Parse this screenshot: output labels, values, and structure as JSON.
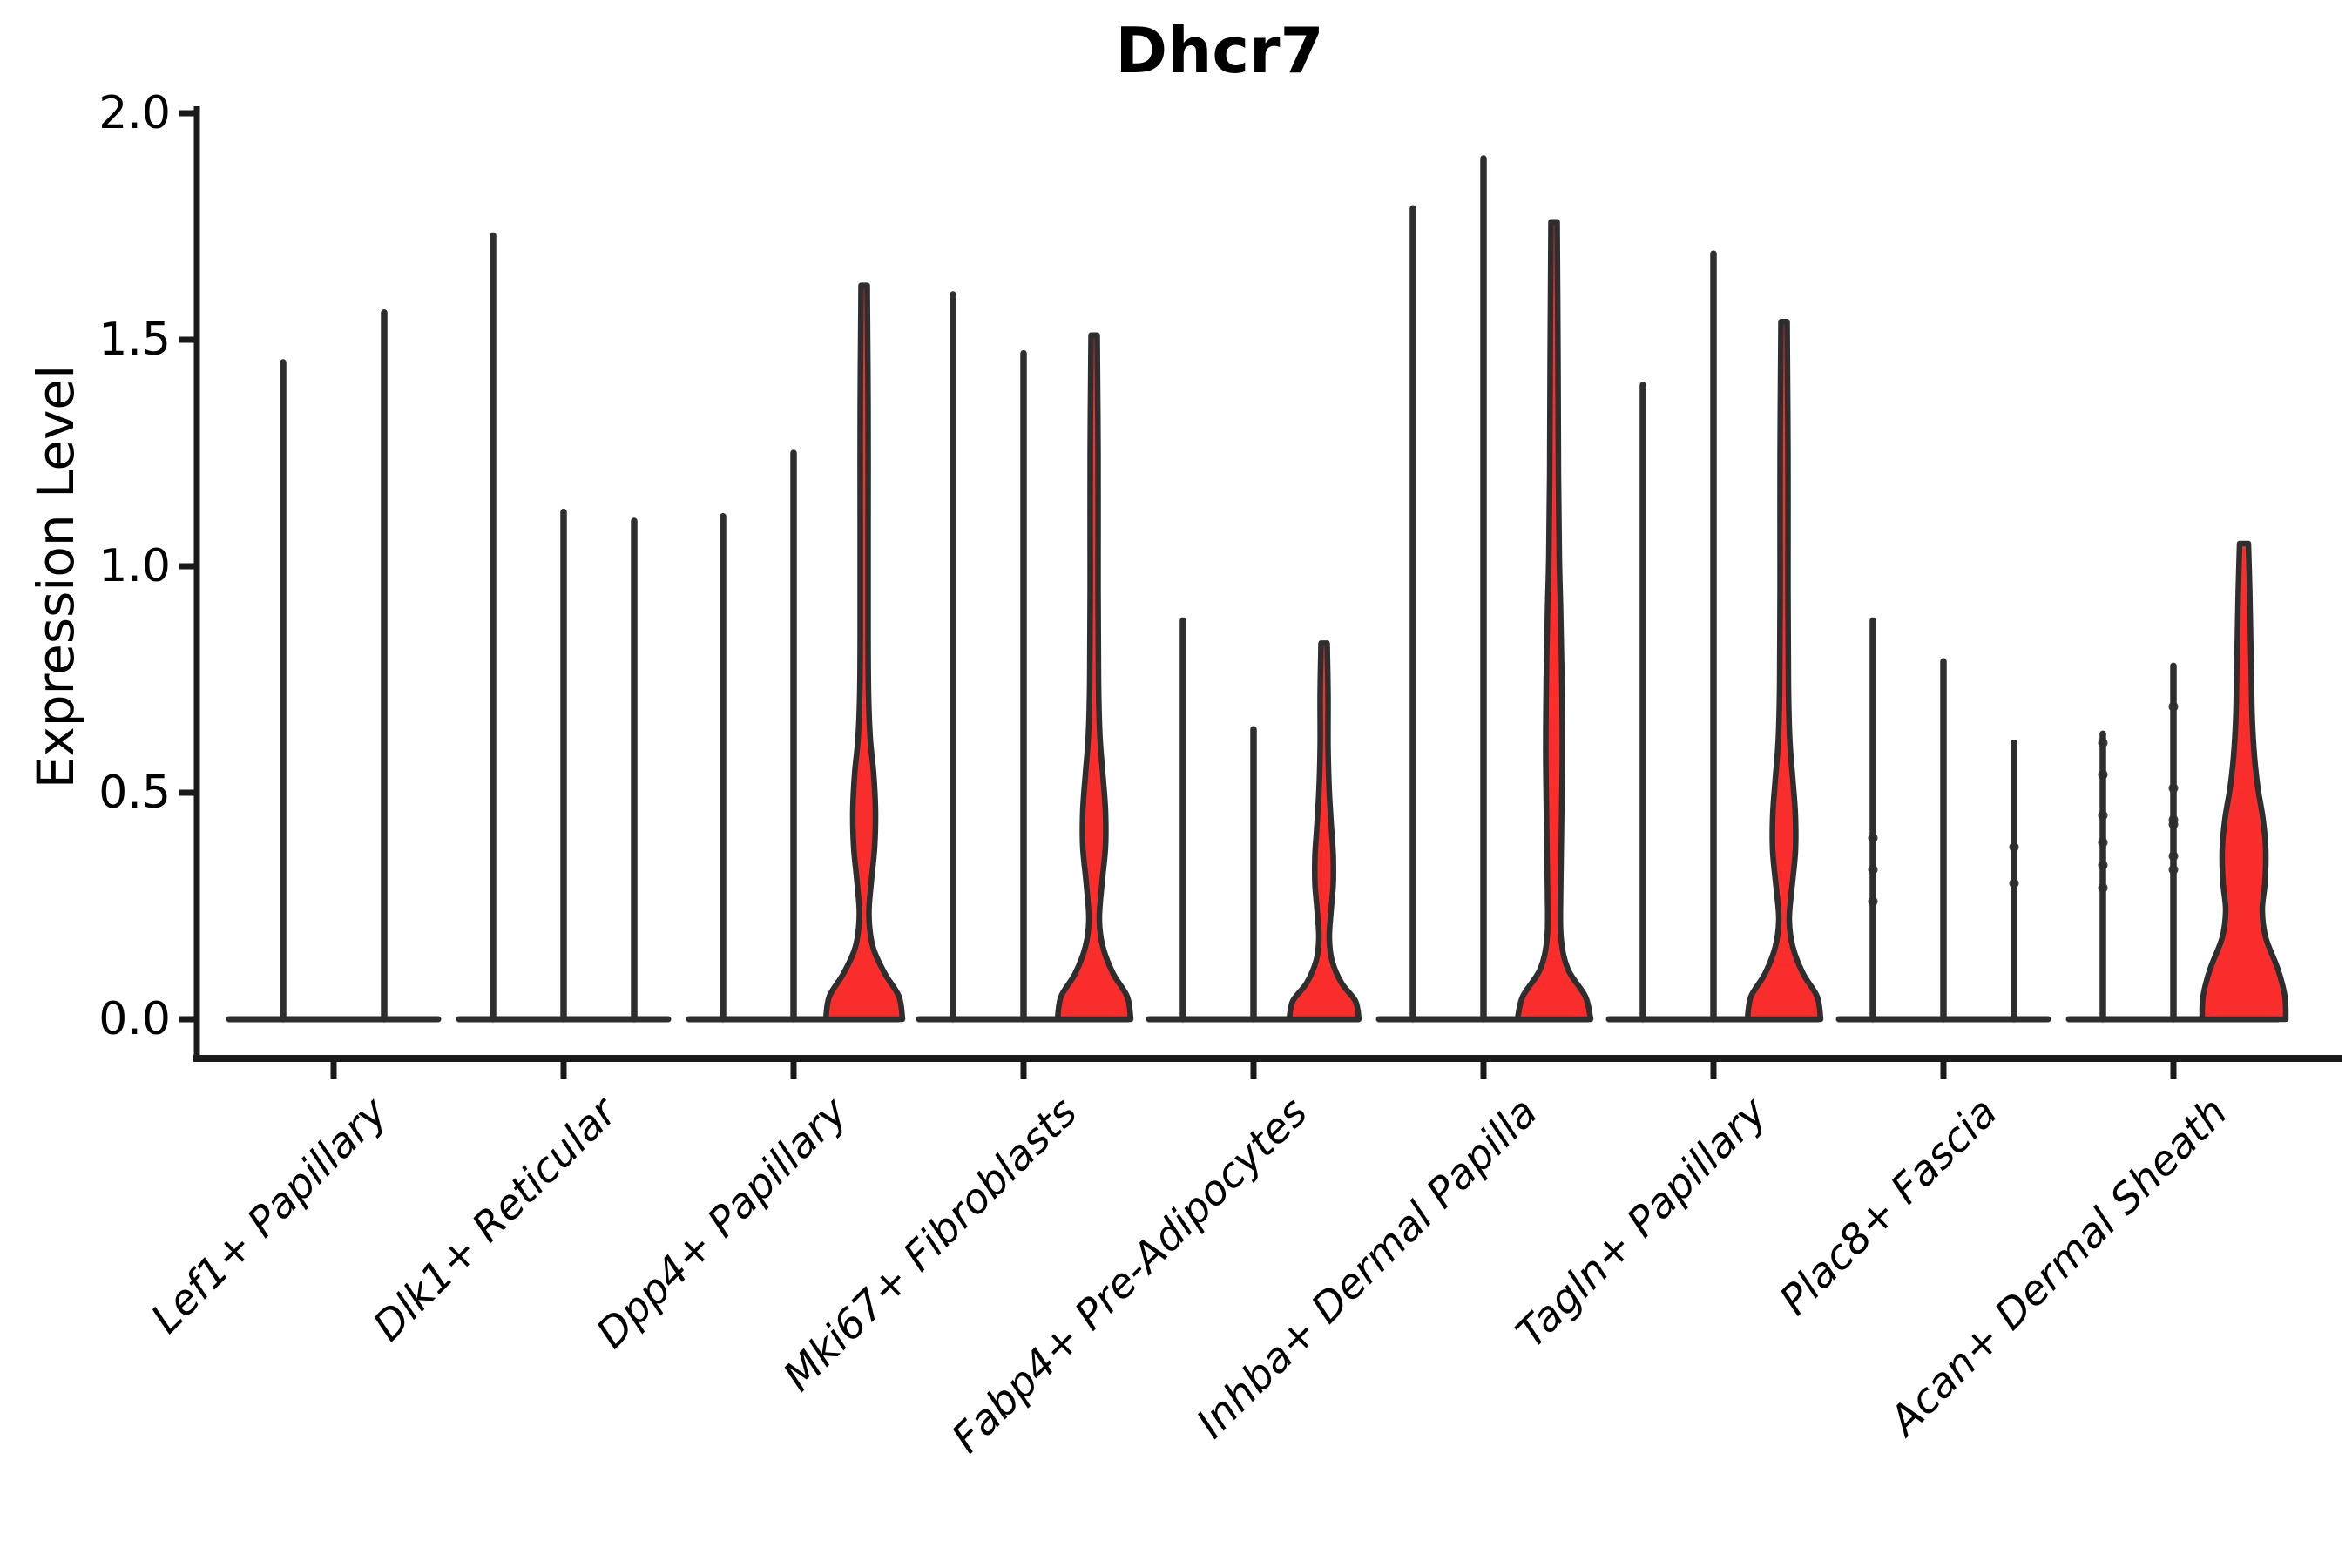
{
  "figure": {
    "title": "Dhcr7",
    "ylabel": "Expression Level"
  },
  "chart_data": {
    "type": "violin",
    "title": "Dhcr7",
    "xlabel": "",
    "ylabel": "Expression Level",
    "ylim": [
      0.0,
      2.0
    ],
    "yticks": [
      "2.0",
      "1.5",
      "1.0",
      "0.5",
      "0.0"
    ],
    "ytick_values": [
      2.0,
      1.5,
      1.0,
      0.5,
      0.0
    ],
    "grid": false,
    "legend": "none",
    "x_label_rotation_deg": 45,
    "colors": {
      "violin_fill": "#fa2d2d",
      "violin_line": "#2e2e2e",
      "spine": "#1a1a1a",
      "text": "#000000",
      "background": "#ffffff"
    },
    "categories": [
      "Lef1+ Papillary",
      "Dlk1+ Reticular",
      "Dpp4+ Papillary",
      "Mki67+ Fibroblasts",
      "Fabp4+ Pre-Adipocytes",
      "Inhba+ Dermal Papilla",
      "Tagln+ Papillary",
      "Plac8+ Fascia",
      "Acan+ Dermal Sheath"
    ],
    "groups": [
      {
        "category": "Lef1+ Papillary",
        "violins": [
          {
            "kind": "spike",
            "max": 1.45
          },
          {
            "kind": "spike",
            "max": 1.56
          }
        ]
      },
      {
        "category": "Dlk1+ Reticular",
        "violins": [
          {
            "kind": "spike",
            "max": 1.73
          },
          {
            "kind": "spike",
            "max": 1.12
          },
          {
            "kind": "spike",
            "max": 1.1
          }
        ]
      },
      {
        "category": "Dpp4+ Papillary",
        "violins": [
          {
            "kind": "spike",
            "max": 1.11
          },
          {
            "kind": "spike",
            "max": 1.25
          },
          {
            "kind": "density",
            "max": 1.62,
            "fill": "#fa2d2d",
            "profile": [
              [
                0,
                44
              ],
              [
                0.05,
                40
              ],
              [
                0.1,
                24
              ],
              [
                0.16,
                10
              ],
              [
                0.23,
                5.5
              ],
              [
                0.3,
                8
              ],
              [
                0.38,
                12
              ],
              [
                0.46,
                13
              ],
              [
                0.54,
                11
              ],
              [
                0.62,
                7
              ],
              [
                0.72,
                5
              ],
              [
                0.85,
                4.5
              ],
              [
                1.05,
                4.5
              ],
              [
                1.35,
                4.5
              ],
              [
                1.62,
                3.5
              ]
            ]
          }
        ]
      },
      {
        "category": "Mki67+ Fibroblasts",
        "violins": [
          {
            "kind": "spike",
            "max": 1.6
          },
          {
            "kind": "spike",
            "max": 1.47
          },
          {
            "kind": "density",
            "max": 1.51,
            "fill": "#fa2d2d",
            "profile": [
              [
                0,
                42
              ],
              [
                0.05,
                38
              ],
              [
                0.1,
                22
              ],
              [
                0.16,
                10
              ],
              [
                0.22,
                6
              ],
              [
                0.3,
                9
              ],
              [
                0.38,
                13
              ],
              [
                0.46,
                13
              ],
              [
                0.54,
                10
              ],
              [
                0.63,
                6.5
              ],
              [
                0.75,
                5
              ],
              [
                0.95,
                4.5
              ],
              [
                1.25,
                4.5
              ],
              [
                1.51,
                3.5
              ]
            ]
          }
        ]
      },
      {
        "category": "Fabp4+ Pre-Adipocytes",
        "violins": [
          {
            "kind": "spike",
            "max": 0.88
          },
          {
            "kind": "spike",
            "max": 0.64
          },
          {
            "kind": "density",
            "max": 0.83,
            "fill": "#fa2d2d",
            "profile": [
              [
                0,
                40
              ],
              [
                0.04,
                36
              ],
              [
                0.08,
                20
              ],
              [
                0.13,
                9
              ],
              [
                0.18,
                6
              ],
              [
                0.24,
                8
              ],
              [
                0.3,
                10.5
              ],
              [
                0.36,
                10.5
              ],
              [
                0.42,
                8.5
              ],
              [
                0.5,
                6
              ],
              [
                0.6,
                4.5
              ],
              [
                0.72,
                4.5
              ],
              [
                0.83,
                3.5
              ]
            ]
          }
        ]
      },
      {
        "category": "Inhba+ Dermal Papilla",
        "violins": [
          {
            "kind": "spike",
            "max": 1.79
          },
          {
            "kind": "spike",
            "max": 1.9
          },
          {
            "kind": "density",
            "max": 1.76,
            "fill": "#fa2d2d",
            "profile": [
              [
                0,
                42
              ],
              [
                0.05,
                36
              ],
              [
                0.11,
                16
              ],
              [
                0.18,
                8
              ],
              [
                0.28,
                7.5
              ],
              [
                0.42,
                8.5
              ],
              [
                0.58,
                9.5
              ],
              [
                0.74,
                9
              ],
              [
                0.9,
                7.5
              ],
              [
                1.02,
                6
              ],
              [
                1.2,
                5
              ],
              [
                1.45,
                4.5
              ],
              [
                1.76,
                3.5
              ]
            ]
          }
        ]
      },
      {
        "category": "Tagln+ Papillary",
        "violins": [
          {
            "kind": "spike",
            "max": 1.4
          },
          {
            "kind": "spike",
            "max": 1.69
          },
          {
            "kind": "density",
            "max": 1.54,
            "fill": "#fa2d2d",
            "profile": [
              [
                0,
                42
              ],
              [
                0.05,
                38
              ],
              [
                0.1,
                22
              ],
              [
                0.16,
                10
              ],
              [
                0.22,
                6
              ],
              [
                0.29,
                9
              ],
              [
                0.37,
                13
              ],
              [
                0.45,
                13
              ],
              [
                0.53,
                10
              ],
              [
                0.62,
                6.5
              ],
              [
                0.74,
                5
              ],
              [
                0.95,
                4.5
              ],
              [
                1.25,
                4.5
              ],
              [
                1.54,
                3.5
              ]
            ]
          }
        ]
      },
      {
        "category": "Plac8+ Fascia",
        "violins": [
          {
            "kind": "spike",
            "max": 0.88,
            "dots": [
              0.26,
              0.33,
              0.4
            ]
          },
          {
            "kind": "spike",
            "max": 0.79
          },
          {
            "kind": "spike",
            "max": 0.61,
            "dots": [
              0.3,
              0.38
            ]
          }
        ]
      },
      {
        "category": "Acan+ Dermal Sheath",
        "violins": [
          {
            "kind": "spike",
            "max": 0.63,
            "dots": [
              0.61,
              0.54,
              0.45,
              0.39,
              0.34,
              0.29
            ]
          },
          {
            "kind": "spike",
            "max": 0.78,
            "dots": [
              0.69,
              0.51,
              0.44,
              0.43,
              0.36,
              0.33
            ]
          },
          {
            "kind": "density",
            "max": 1.05,
            "fill": "#fa2d2d",
            "profile": [
              [
                0,
                48
              ],
              [
                0.05,
                47
              ],
              [
                0.11,
                39
              ],
              [
                0.18,
                25
              ],
              [
                0.24,
                21
              ],
              [
                0.3,
                24
              ],
              [
                0.37,
                25
              ],
              [
                0.44,
                22
              ],
              [
                0.51,
                16
              ],
              [
                0.58,
                12
              ],
              [
                0.66,
                9.5
              ],
              [
                0.75,
                8.5
              ],
              [
                0.85,
                7.5
              ],
              [
                0.95,
                6.5
              ],
              [
                1.05,
                5
              ]
            ]
          }
        ]
      }
    ]
  }
}
